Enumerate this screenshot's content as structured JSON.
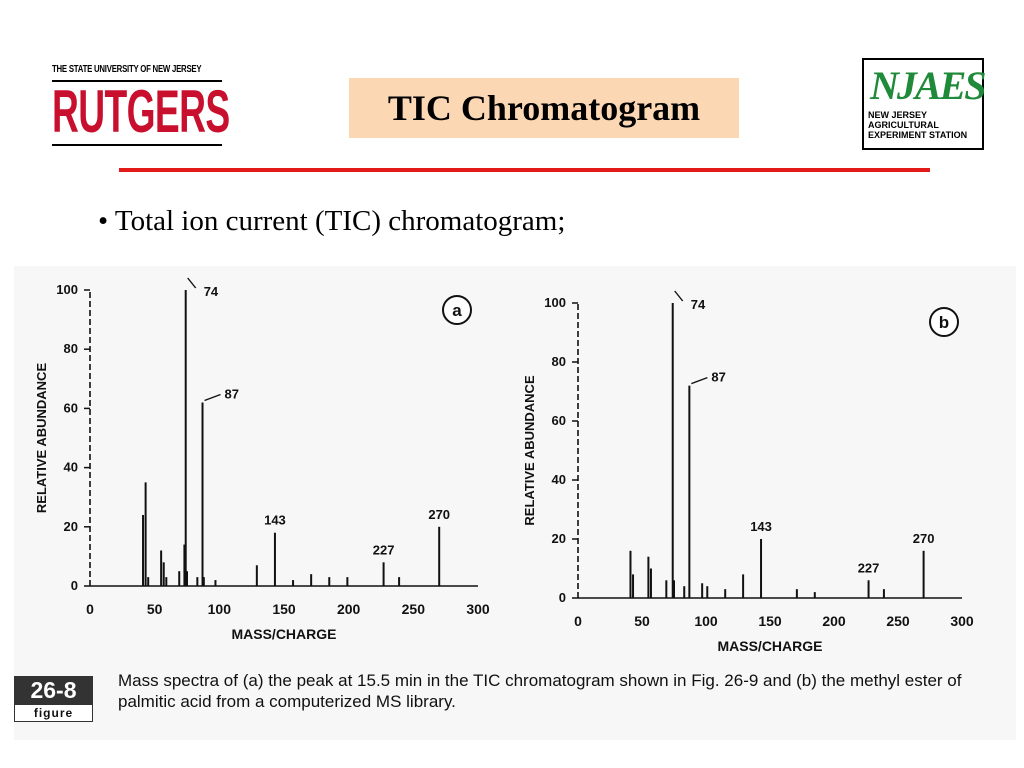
{
  "header": {
    "rutgers_top": "THE STATE UNIVERSITY OF NEW JERSEY",
    "rutgers_name": "RUTGERS",
    "title": "TIC Chromatogram",
    "njaes_mark": "NJAES",
    "njaes_lines": [
      "NEW JERSEY",
      "AGRICULTURAL",
      "EXPERIMENT STATION"
    ]
  },
  "bullet": "• Total ion current (TIC) chromatogram;",
  "figure": {
    "number": "26-8",
    "label": "figure",
    "caption": "Mass spectra of (a) the peak at 15.5 min in the TIC chromatogram shown in Fig. 26-9 and (b) the methyl ester of palmitic acid from a computerized MS library."
  },
  "colors": {
    "accent": "#e21a1a",
    "title_bg": "#fbd7b4",
    "rutgers_red": "#c8102e",
    "njaes_green": "#1f8a3a"
  },
  "chart_data": [
    {
      "type": "bar",
      "panel": "a",
      "xlabel": "MASS/CHARGE",
      "ylabel": "RELATIVE ABUNDANCE",
      "xlim": [
        0,
        300
      ],
      "ylim": [
        0,
        100
      ],
      "xticks": [
        0,
        50,
        100,
        150,
        200,
        250,
        300
      ],
      "yticks": [
        0,
        20,
        40,
        60,
        80,
        100
      ],
      "peaks": [
        {
          "x": 41,
          "y": 24
        },
        {
          "x": 43,
          "y": 35
        },
        {
          "x": 45,
          "y": 3
        },
        {
          "x": 55,
          "y": 12
        },
        {
          "x": 57,
          "y": 8
        },
        {
          "x": 59,
          "y": 3
        },
        {
          "x": 69,
          "y": 5
        },
        {
          "x": 73,
          "y": 14
        },
        {
          "x": 74,
          "y": 100
        },
        {
          "x": 75,
          "y": 5
        },
        {
          "x": 83,
          "y": 3
        },
        {
          "x": 87,
          "y": 62
        },
        {
          "x": 88,
          "y": 3
        },
        {
          "x": 97,
          "y": 2
        },
        {
          "x": 129,
          "y": 7
        },
        {
          "x": 143,
          "y": 18
        },
        {
          "x": 157,
          "y": 2
        },
        {
          "x": 171,
          "y": 4
        },
        {
          "x": 185,
          "y": 3
        },
        {
          "x": 199,
          "y": 3
        },
        {
          "x": 227,
          "y": 8
        },
        {
          "x": 239,
          "y": 3
        },
        {
          "x": 270,
          "y": 20
        }
      ],
      "labels": [
        {
          "x": 74,
          "y": 100,
          "text": "74"
        },
        {
          "x": 87,
          "y": 62,
          "text": "87"
        },
        {
          "x": 143,
          "y": 18,
          "text": "143"
        },
        {
          "x": 227,
          "y": 8,
          "text": "227"
        },
        {
          "x": 270,
          "y": 20,
          "text": "270"
        }
      ]
    },
    {
      "type": "bar",
      "panel": "b",
      "xlabel": "MASS/CHARGE",
      "ylabel": "RELATIVE ABUNDANCE",
      "xlim": [
        0,
        300
      ],
      "ylim": [
        0,
        100
      ],
      "xticks": [
        0,
        50,
        100,
        150,
        200,
        250,
        300
      ],
      "yticks": [
        0,
        20,
        40,
        60,
        80,
        100
      ],
      "peaks": [
        {
          "x": 41,
          "y": 16
        },
        {
          "x": 43,
          "y": 8
        },
        {
          "x": 55,
          "y": 14
        },
        {
          "x": 57,
          "y": 10
        },
        {
          "x": 69,
          "y": 6
        },
        {
          "x": 74,
          "y": 100
        },
        {
          "x": 75,
          "y": 6
        },
        {
          "x": 83,
          "y": 4
        },
        {
          "x": 87,
          "y": 72
        },
        {
          "x": 97,
          "y": 5
        },
        {
          "x": 101,
          "y": 4
        },
        {
          "x": 115,
          "y": 3
        },
        {
          "x": 129,
          "y": 8
        },
        {
          "x": 143,
          "y": 20
        },
        {
          "x": 171,
          "y": 3
        },
        {
          "x": 185,
          "y": 2
        },
        {
          "x": 227,
          "y": 6
        },
        {
          "x": 239,
          "y": 3
        },
        {
          "x": 270,
          "y": 16
        }
      ],
      "labels": [
        {
          "x": 74,
          "y": 100,
          "text": "74"
        },
        {
          "x": 87,
          "y": 72,
          "text": "87"
        },
        {
          "x": 143,
          "y": 20,
          "text": "143"
        },
        {
          "x": 227,
          "y": 6,
          "text": "227"
        },
        {
          "x": 270,
          "y": 16,
          "text": "270"
        }
      ]
    }
  ]
}
